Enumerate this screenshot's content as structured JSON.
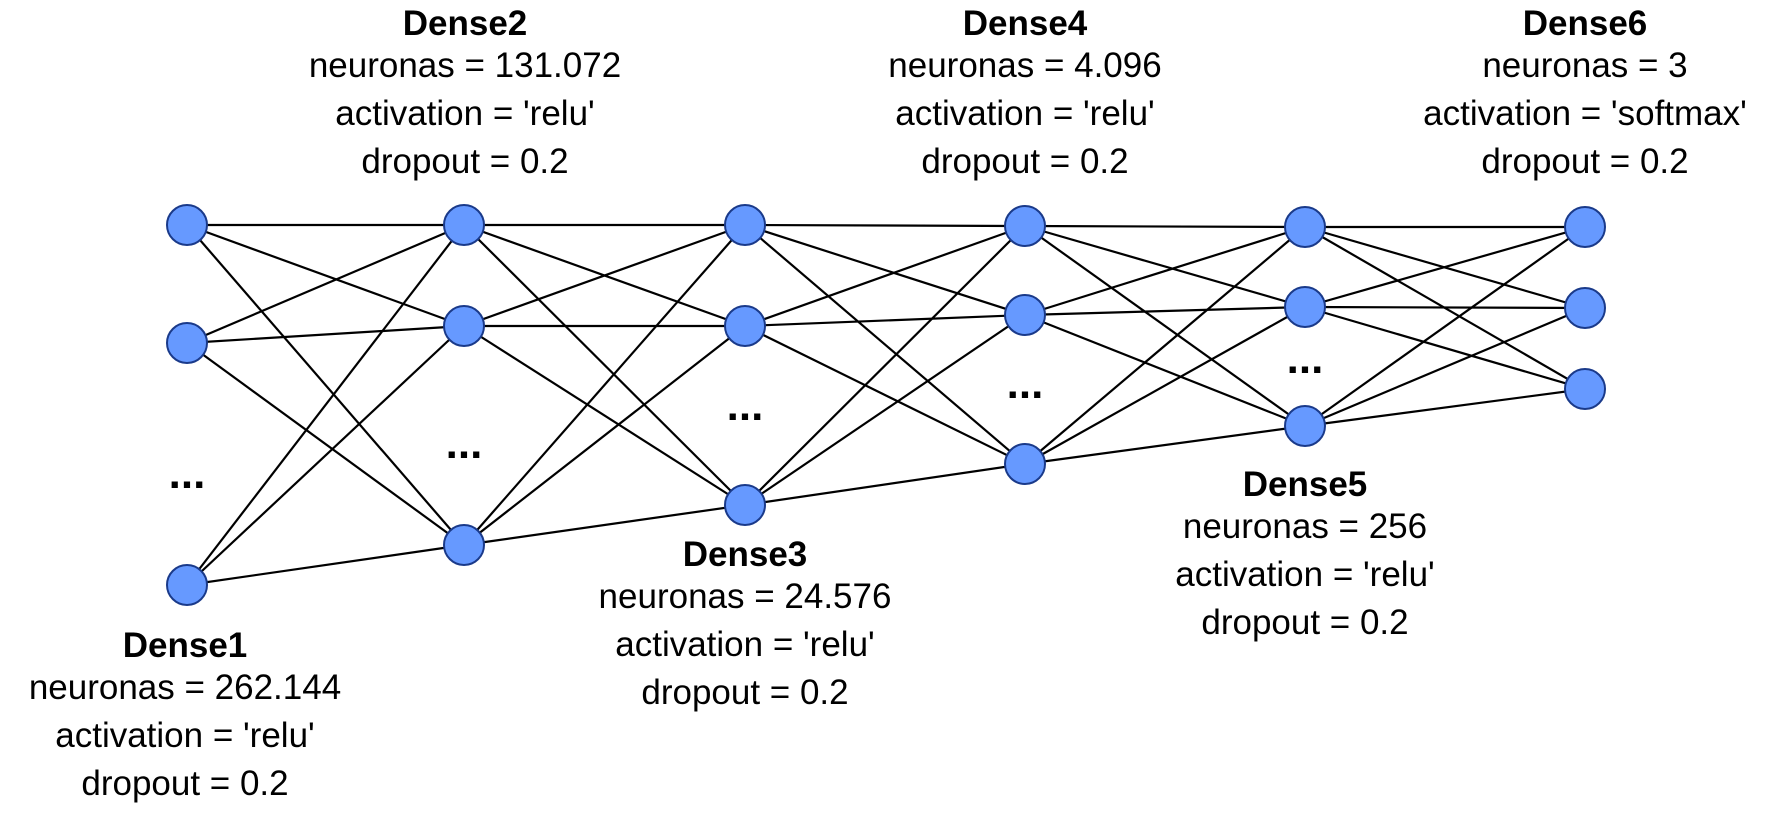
{
  "diagram": {
    "node_color": "#6699ff",
    "node_stroke": "#1a3a8a",
    "edge_color": "#000000",
    "ellipsis": "...",
    "layers": [
      {
        "name": "Dense1",
        "neurons": "neuronas = 262.144",
        "activation": "activation = 'relu'",
        "dropout": "dropout = 0.2",
        "label_position": "below"
      },
      {
        "name": "Dense2",
        "neurons": "neuronas = 131.072",
        "activation": "activation = 'relu'",
        "dropout": "dropout = 0.2",
        "label_position": "above"
      },
      {
        "name": "Dense3",
        "neurons": "neuronas = 24.576",
        "activation": "activation = 'relu'",
        "dropout": "dropout = 0.2",
        "label_position": "below"
      },
      {
        "name": "Dense4",
        "neurons": "neuronas = 4.096",
        "activation": "activation = 'relu'",
        "dropout": "dropout = 0.2",
        "label_position": "above"
      },
      {
        "name": "Dense5",
        "neurons": "neuronas = 256",
        "activation": "activation = 'relu'",
        "dropout": "dropout = 0.2",
        "label_position": "below"
      },
      {
        "name": "Dense6",
        "neurons": "neuronas = 3",
        "activation": "activation = 'softmax'",
        "dropout": "dropout = 0.2",
        "label_position": "above"
      }
    ]
  }
}
